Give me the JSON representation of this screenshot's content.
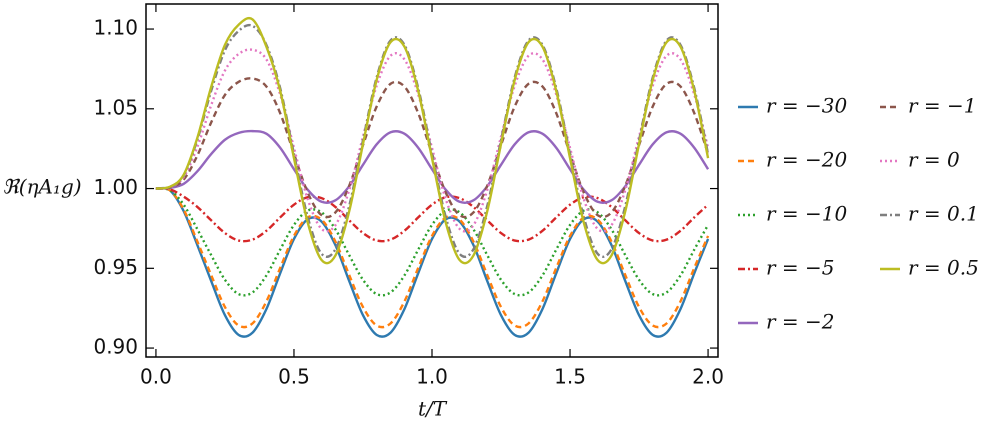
{
  "chart_data": {
    "type": "line",
    "xlabel": "t/T",
    "ylabel": "ℜ(ηA₁g)",
    "x": [
      0,
      0.05,
      0.1,
      0.15,
      0.2,
      0.25,
      0.3,
      0.35,
      0.4,
      0.45,
      0.5,
      0.55,
      0.6,
      0.65,
      0.7,
      0.75,
      0.8,
      0.85,
      0.9,
      0.95,
      1,
      1.05,
      1.1,
      1.15,
      1.2,
      1.25,
      1.3,
      1.35,
      1.4,
      1.45,
      1.5,
      1.55,
      1.6,
      1.65,
      1.7,
      1.75,
      1.8,
      1.85,
      1.9,
      1.95,
      2
    ],
    "xlim": [
      -0.036,
      2.036
    ],
    "ylim": [
      0.8944,
      1.1157
    ],
    "xticks": [
      {
        "value": 0,
        "label": "0.0"
      },
      {
        "value": 0.5,
        "label": "0.5"
      },
      {
        "value": 1,
        "label": "1.0"
      },
      {
        "value": 1.5,
        "label": "1.5"
      },
      {
        "value": 2,
        "label": "2.0"
      }
    ],
    "yticks": [
      {
        "value": 0.9,
        "label": "0.90"
      },
      0.95,
      {
        "value": 1,
        "label": "1.00"
      },
      1.05,
      {
        "value": 1.1,
        "label": "1.10"
      }
    ],
    "series": [
      {
        "name": "r = −30",
        "color": "#2e7ab0",
        "dash": "solid",
        "values": [
          1.0,
          0.999,
          0.986,
          0.9646,
          0.9421,
          0.9206,
          0.9082,
          0.9097,
          0.9244,
          0.9469,
          0.9684,
          0.9808,
          0.9793,
          0.9646,
          0.9421,
          0.9206,
          0.9082,
          0.9097,
          0.9244,
          0.9469,
          0.9684,
          0.9808,
          0.9793,
          0.9646,
          0.9421,
          0.9206,
          0.9082,
          0.9097,
          0.9244,
          0.9469,
          0.9684,
          0.9808,
          0.9793,
          0.9646,
          0.9421,
          0.9206,
          0.9082,
          0.9097,
          0.9244,
          0.9469,
          0.9684
        ]
      },
      {
        "name": "r = −20",
        "color": "#ff7f0e",
        "dash": "dashed",
        "values": [
          1.0,
          0.999,
          0.987,
          0.9668,
          0.9458,
          0.9257,
          0.9141,
          0.9155,
          0.9292,
          0.9502,
          0.9703,
          0.9819,
          0.9805,
          0.9668,
          0.9458,
          0.9257,
          0.9141,
          0.9155,
          0.9292,
          0.9502,
          0.9703,
          0.9819,
          0.9805,
          0.9668,
          0.9458,
          0.9257,
          0.9141,
          0.9155,
          0.9292,
          0.9502,
          0.9703,
          0.9819,
          0.9805,
          0.9668,
          0.9458,
          0.9257,
          0.9141,
          0.9155,
          0.9292,
          0.9502,
          0.9703
        ]
      },
      {
        "name": "r = −10",
        "color": "#2ca02c",
        "dash": "dotted",
        "values": [
          1.0,
          0.999,
          0.99,
          0.9745,
          0.9583,
          0.9428,
          0.9338,
          0.9349,
          0.9455,
          0.9617,
          0.9772,
          0.9862,
          0.9851,
          0.9745,
          0.9583,
          0.9428,
          0.9338,
          0.9349,
          0.9455,
          0.9617,
          0.9772,
          0.9862,
          0.9851,
          0.9745,
          0.9583,
          0.9428,
          0.9338,
          0.9349,
          0.9455,
          0.9617,
          0.9772,
          0.9862,
          0.9851,
          0.9745,
          0.9583,
          0.9428,
          0.9338,
          0.9349,
          0.9455,
          0.9617,
          0.9772
        ]
      },
      {
        "name": "r = −5",
        "color": "#d62728",
        "dash": "dashdot",
        "values": [
          1.0,
          0.9995,
          0.995,
          0.9885,
          0.9801,
          0.9721,
          0.9674,
          0.968,
          0.9735,
          0.9819,
          0.9899,
          0.9946,
          0.994,
          0.9885,
          0.9801,
          0.9721,
          0.9674,
          0.968,
          0.9735,
          0.9819,
          0.9899,
          0.9946,
          0.994,
          0.9885,
          0.9801,
          0.9721,
          0.9674,
          0.968,
          0.9735,
          0.9819,
          0.9899,
          0.9946,
          0.994,
          0.9885,
          0.9801,
          0.9721,
          0.9674,
          0.968,
          0.9735,
          0.9819,
          0.9899
        ]
      },
      {
        "name": "r = −2",
        "color": "#9467bd",
        "dash": "solid",
        "values": [
          1.0,
          1.0004,
          1.0029,
          1.0108,
          1.0216,
          1.0306,
          1.0349,
          1.036,
          1.0344,
          1.0256,
          1.0121,
          0.9992,
          0.9917,
          0.9926,
          1.0014,
          1.0149,
          1.0278,
          1.0353,
          1.0344,
          1.0256,
          1.0121,
          0.9992,
          0.9917,
          0.9926,
          1.0014,
          1.0149,
          1.0278,
          1.0353,
          1.0344,
          1.0256,
          1.0121,
          0.9992,
          0.9917,
          0.9926,
          1.0014,
          1.0149,
          1.0278,
          1.0353,
          1.0344,
          1.0256,
          1.0121
        ]
      },
      {
        "name": "r = −1",
        "color": "#8c564b",
        "dash": "dashed",
        "values": [
          1.0,
          1.0007,
          1.0055,
          1.0207,
          1.0414,
          1.0587,
          1.0669,
          1.069,
          1.064,
          1.0473,
          1.0218,
          0.9974,
          0.9833,
          0.985,
          1.0017,
          1.0272,
          1.0516,
          1.0657,
          1.064,
          1.0473,
          1.0218,
          0.9974,
          0.9833,
          0.985,
          1.0017,
          1.0272,
          1.0516,
          1.0657,
          1.064,
          1.0473,
          1.0218,
          0.9974,
          0.9833,
          0.985,
          1.0017,
          1.0272,
          1.0516,
          1.0657,
          1.064,
          1.0473,
          1.0218
        ]
      },
      {
        "name": "r = 0",
        "color": "#e377c2",
        "dash": "dotted",
        "values": [
          1.0,
          1.0009,
          1.007,
          1.0261,
          1.0522,
          1.074,
          1.0844,
          1.087,
          1.081,
          1.059,
          1.0255,
          0.9933,
          0.9747,
          0.977,
          0.999,
          1.0325,
          1.0647,
          1.0833,
          1.081,
          1.059,
          1.0255,
          0.9933,
          0.9747,
          0.977,
          0.999,
          1.0325,
          1.0647,
          1.0833,
          1.081,
          1.059,
          1.0255,
          0.9933,
          0.9747,
          0.977,
          0.999,
          1.0325,
          1.0647,
          1.0833,
          1.081,
          1.059,
          1.0255
        ]
      },
      {
        "name": "r = 0.1",
        "color": "#7f7f7f",
        "dash": "dashdot",
        "values": [
          1.0,
          1.001,
          1.0082,
          1.0306,
          1.0612,
          1.0867,
          1.0989,
          1.102,
          1.0901,
          1.063,
          1.0217,
          0.982,
          0.9591,
          0.9619,
          0.989,
          1.0303,
          1.07,
          1.0929,
          1.0901,
          1.063,
          1.0217,
          0.982,
          0.9591,
          0.9619,
          0.989,
          1.0303,
          1.07,
          1.0929,
          1.0901,
          1.063,
          1.0217,
          0.982,
          0.9591,
          0.9619,
          0.989,
          1.0303,
          1.07,
          1.0929,
          1.0901,
          1.063,
          1.0217
        ]
      },
      {
        "name": "r = 0.5",
        "color": "#bcbd22",
        "dash": "solid",
        "values": [
          1.0,
          1.0011,
          1.0085,
          1.0318,
          1.0636,
          1.0901,
          1.1028,
          1.106,
          1.089,
          1.0613,
          1.0191,
          0.9786,
          0.9552,
          0.958,
          0.9857,
          1.0279,
          1.0684,
          1.0918,
          1.089,
          1.0613,
          1.0191,
          0.9786,
          0.9552,
          0.958,
          0.9857,
          1.0279,
          1.0684,
          1.0918,
          1.089,
          1.0613,
          1.0191,
          0.9786,
          0.9552,
          0.958,
          0.9857,
          1.0279,
          1.0684,
          1.0918,
          1.089,
          1.0613,
          1.0191
        ]
      }
    ]
  }
}
